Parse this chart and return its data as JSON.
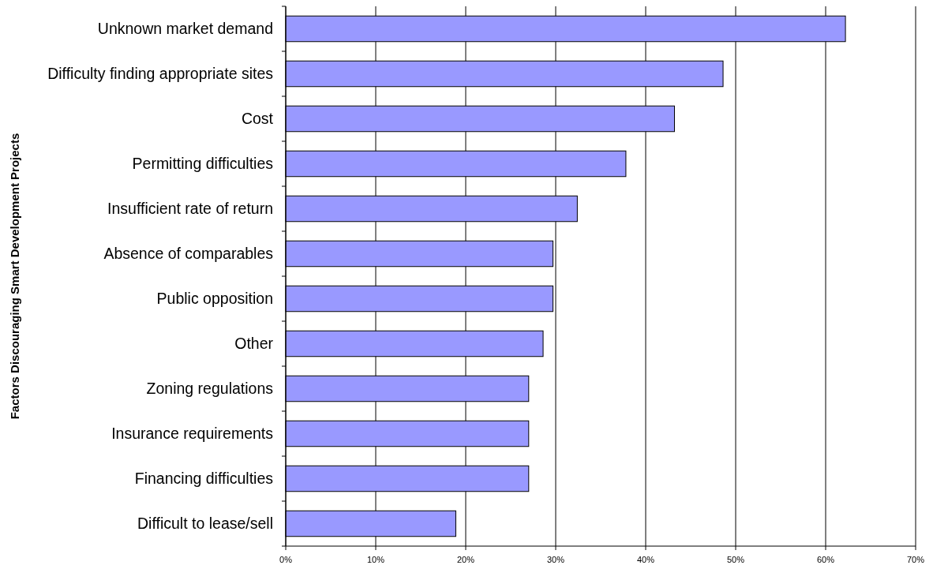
{
  "chart_data": {
    "type": "bar",
    "orientation": "horizontal",
    "ylabel": "Factors Discouraging Smart Development Projects",
    "categories": [
      "Unknown market demand",
      "Difficulty finding appropriate sites",
      "Cost",
      "Permitting difficulties",
      "Insufficient rate of return",
      "Absence of comparables",
      "Public opposition",
      "Other",
      "Zoning regulations",
      "Insurance requirements",
      "Financing difficulties",
      "Difficult to lease/sell"
    ],
    "values": [
      62.2,
      48.6,
      43.2,
      37.8,
      32.4,
      29.7,
      29.7,
      28.6,
      27.0,
      27.0,
      27.0,
      18.9
    ],
    "color": "#9999ff",
    "xlim": [
      0,
      70
    ],
    "xticks": [
      {
        "value": 0,
        "label": "0%"
      },
      {
        "value": 10,
        "label": "10%"
      },
      {
        "value": 20,
        "label": "20%"
      },
      {
        "value": 30,
        "label": "30%"
      },
      {
        "value": 40,
        "label": "40%"
      },
      {
        "value": 50,
        "label": "50%"
      },
      {
        "value": 60,
        "label": "60%"
      },
      {
        "value": 70,
        "label": "70%"
      }
    ],
    "grid": "x"
  }
}
